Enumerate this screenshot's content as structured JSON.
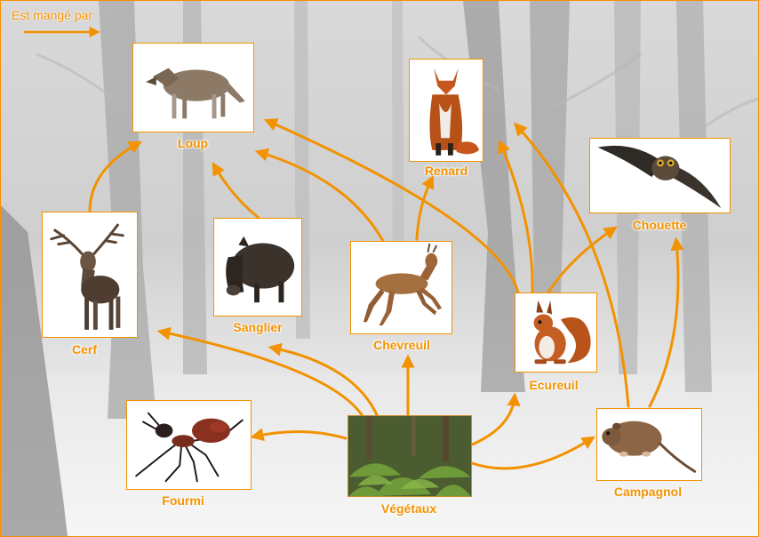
{
  "legend": {
    "label": "Est mangé par"
  },
  "colors": {
    "accent": "#f39200",
    "background": "#d8d8d8"
  },
  "nodes": {
    "loup": {
      "label": "Loup",
      "icon": "wolf-photo"
    },
    "renard": {
      "label": "Renard",
      "icon": "fox-photo"
    },
    "chouette": {
      "label": "Chouette",
      "icon": "owl-photo"
    },
    "cerf": {
      "label": "Cerf",
      "icon": "deer-photo"
    },
    "sanglier": {
      "label": "Sanglier",
      "icon": "boar-photo"
    },
    "chevreuil": {
      "label": "Chevreuil",
      "icon": "roe-deer-photo"
    },
    "ecureuil": {
      "label": "Ecureuil",
      "icon": "squirrel-photo"
    },
    "fourmi": {
      "label": "Fourmi",
      "icon": "ant-photo"
    },
    "vegetaux": {
      "label": "Végétaux",
      "icon": "plants-photo"
    },
    "campagnol": {
      "label": "Campagnol",
      "icon": "vole-photo"
    }
  },
  "links": [
    [
      "vegetaux",
      "fourmi"
    ],
    [
      "vegetaux",
      "cerf"
    ],
    [
      "vegetaux",
      "sanglier"
    ],
    [
      "vegetaux",
      "chevreuil"
    ],
    [
      "vegetaux",
      "ecureuil"
    ],
    [
      "vegetaux",
      "campagnol"
    ],
    [
      "cerf",
      "loup"
    ],
    [
      "sanglier",
      "loup"
    ],
    [
      "chevreuil",
      "loup"
    ],
    [
      "chevreuil",
      "renard"
    ],
    [
      "ecureuil",
      "loup"
    ],
    [
      "ecureuil",
      "renard"
    ],
    [
      "ecureuil",
      "chouette"
    ],
    [
      "campagnol",
      "renard"
    ],
    [
      "campagnol",
      "chouette"
    ]
  ]
}
